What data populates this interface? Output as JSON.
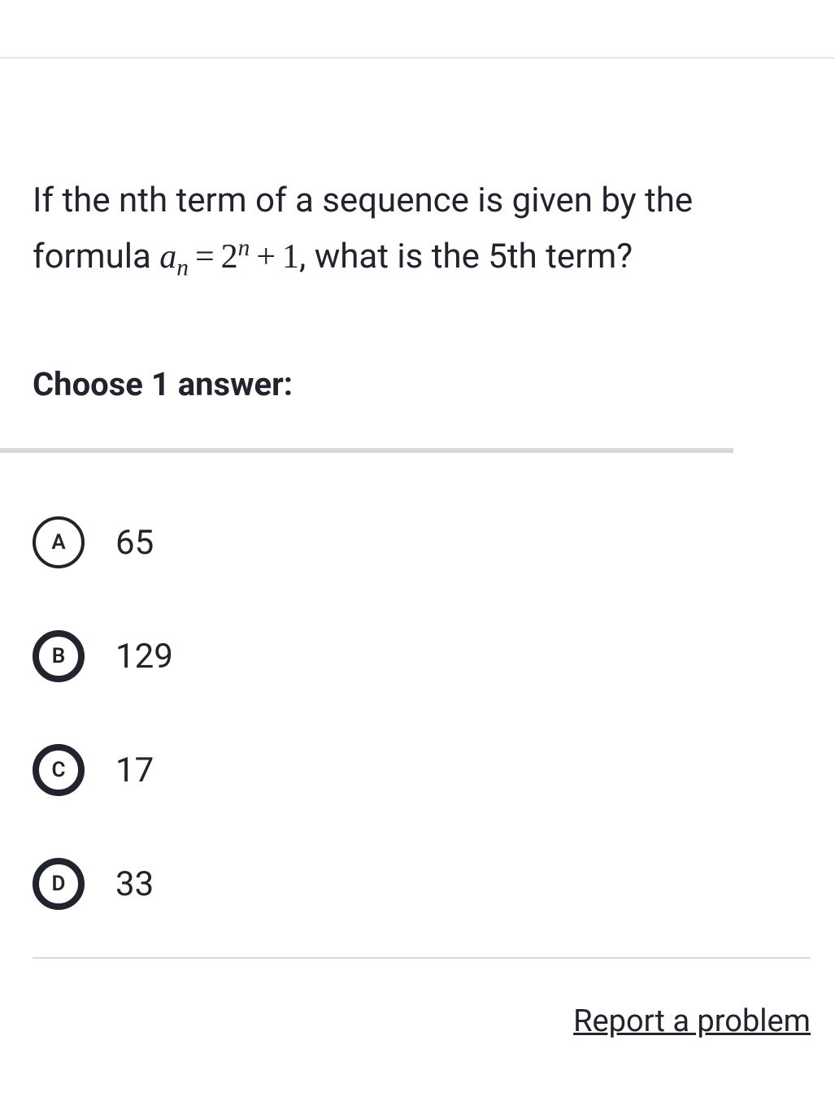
{
  "question": {
    "text_before_formula": "If the nth term of a sequence is given by the formula ",
    "formula_var": "a",
    "formula_sub": "n",
    "formula_eq": "=",
    "formula_base": "2",
    "formula_exp": "n",
    "formula_plus": "+",
    "formula_one": "1",
    "text_after_formula": ", what is the 5th term?"
  },
  "instruction": "Choose 1 answer:",
  "answers": [
    {
      "letter": "A",
      "text": "65",
      "ring_style": "thin"
    },
    {
      "letter": "B",
      "text": "129",
      "ring_style": "thick"
    },
    {
      "letter": "C",
      "text": "17",
      "ring_style": "thick"
    },
    {
      "letter": "D",
      "text": "33",
      "ring_style": "thick"
    }
  ],
  "report_link": "Report a problem",
  "colors": {
    "text": "#21242c",
    "divider": "#e8e8e8",
    "answers_border": "#d6d8da",
    "background": "#ffffff"
  }
}
